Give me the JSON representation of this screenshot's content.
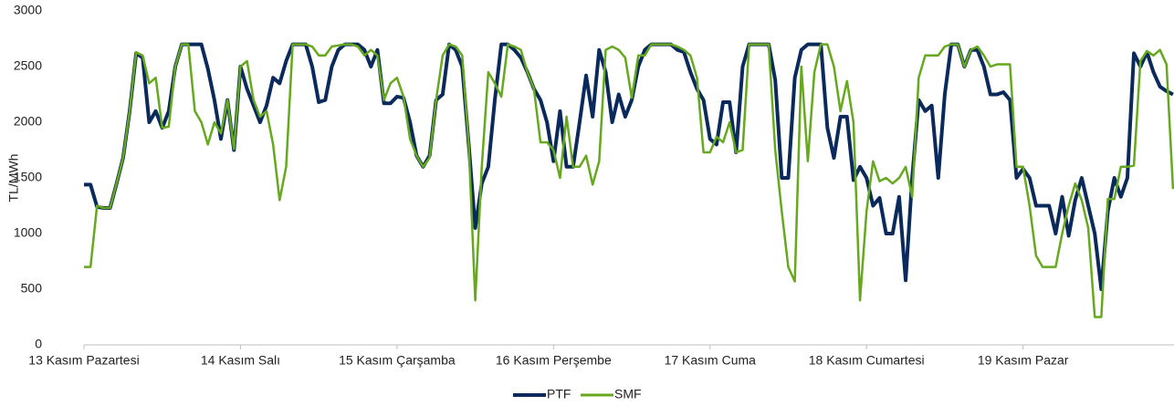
{
  "chart_data": {
    "type": "line",
    "y_label": "TL/MWh",
    "categories": [
      "13 Kasım Pazartesi",
      null,
      null,
      null,
      null,
      null,
      null,
      null,
      null,
      null,
      null,
      null,
      null,
      null,
      null,
      null,
      null,
      null,
      null,
      null,
      null,
      null,
      null,
      null,
      "14 Kasım Salı",
      null,
      null,
      null,
      null,
      null,
      null,
      null,
      null,
      null,
      null,
      null,
      null,
      null,
      null,
      null,
      null,
      null,
      null,
      null,
      null,
      null,
      null,
      null,
      "15 Kasım Çarşamba",
      null,
      null,
      null,
      null,
      null,
      null,
      null,
      null,
      null,
      null,
      null,
      null,
      null,
      null,
      null,
      null,
      null,
      null,
      null,
      null,
      null,
      null,
      null,
      "16 Kasım Perşembe",
      null,
      null,
      null,
      null,
      null,
      null,
      null,
      null,
      null,
      null,
      null,
      null,
      null,
      null,
      null,
      null,
      null,
      null,
      null,
      null,
      null,
      null,
      null,
      "17 Kasım Cuma",
      null,
      null,
      null,
      null,
      null,
      null,
      null,
      null,
      null,
      null,
      null,
      null,
      null,
      null,
      null,
      null,
      null,
      null,
      null,
      null,
      null,
      null,
      null,
      "18 Kasım Cumartesi",
      null,
      null,
      null,
      null,
      null,
      null,
      null,
      null,
      null,
      null,
      null,
      null,
      null,
      null,
      null,
      null,
      null,
      null,
      null,
      null,
      null,
      null,
      null,
      "19 Kasım Pazar",
      null,
      null,
      null,
      null,
      null,
      null,
      null,
      null,
      null,
      null,
      null,
      null,
      null,
      null,
      null,
      null,
      null,
      null,
      null,
      null,
      null,
      null,
      null
    ],
    "series": [
      {
        "name": "PTF",
        "color": "#0b2a5c",
        "values": [
          1440,
          1440,
          1240,
          1230,
          1230,
          1450,
          1680,
          2100,
          2620,
          2580,
          2000,
          2100,
          1950,
          2100,
          2500,
          2700,
          2700,
          2700,
          2700,
          2480,
          2200,
          1850,
          2200,
          1750,
          2500,
          2300,
          2150,
          2000,
          2150,
          2400,
          2350,
          2550,
          2700,
          2700,
          2700,
          2500,
          2180,
          2200,
          2500,
          2650,
          2700,
          2700,
          2700,
          2650,
          2500,
          2650,
          2170,
          2170,
          2230,
          2220,
          2000,
          1700,
          1600,
          1700,
          2200,
          2250,
          2700,
          2650,
          2500,
          1800,
          1050,
          1450,
          1600,
          2200,
          2700,
          2700,
          2650,
          2580,
          2450,
          2300,
          2200,
          2000,
          1650,
          2100,
          1600,
          1600,
          2000,
          2420,
          2050,
          2650,
          2450,
          2000,
          2250,
          2050,
          2200,
          2500,
          2650,
          2700,
          2700,
          2700,
          2700,
          2650,
          2630,
          2450,
          2300,
          2200,
          1850,
          1800,
          2180,
          2180,
          1730,
          2500,
          2700,
          2700,
          2700,
          2700,
          2380,
          1500,
          1500,
          2400,
          2650,
          2700,
          2700,
          2700,
          1950,
          1680,
          2050,
          2050,
          1480,
          1600,
          1500,
          1250,
          1320,
          1000,
          1000,
          1330,
          580,
          1500,
          2200,
          2100,
          2150,
          1500,
          2250,
          2700,
          2700,
          2500,
          2650,
          2650,
          2500,
          2250,
          2250,
          2270,
          2200,
          1500,
          1580,
          1500,
          1250,
          1250,
          1250,
          1000,
          1330,
          980,
          1300,
          1500,
          1250,
          1000,
          500,
          1200,
          1500,
          1330,
          1500,
          2620,
          2500,
          2630,
          2450,
          2320,
          2280,
          2250
        ]
      },
      {
        "name": "SMF",
        "color": "#66a81e",
        "values": [
          700,
          700,
          1250,
          1230,
          1230,
          1450,
          1680,
          2100,
          2630,
          2600,
          2350,
          2400,
          1950,
          1960,
          2500,
          2700,
          2700,
          2100,
          2000,
          1800,
          2000,
          1900,
          2200,
          1760,
          2500,
          2550,
          2200,
          2050,
          2100,
          1800,
          1300,
          1600,
          2700,
          2700,
          2700,
          2680,
          2600,
          2600,
          2680,
          2690,
          2700,
          2700,
          2680,
          2600,
          2650,
          2600,
          2200,
          2350,
          2400,
          2230,
          1850,
          1700,
          1600,
          1680,
          2200,
          2600,
          2700,
          2680,
          2600,
          1800,
          400,
          1600,
          2450,
          2350,
          2230,
          2700,
          2680,
          2650,
          2450,
          2300,
          1820,
          1820,
          1750,
          1500,
          2050,
          1600,
          1600,
          1700,
          1440,
          1650,
          2650,
          2680,
          2650,
          2580,
          2220,
          2600,
          2600,
          2700,
          2700,
          2700,
          2700,
          2680,
          2650,
          2600,
          2400,
          1730,
          1730,
          1870,
          1820,
          2000,
          1730,
          1750,
          2700,
          2700,
          2700,
          2700,
          1750,
          1200,
          700,
          570,
          2500,
          1650,
          2450,
          2700,
          2700,
          2500,
          2100,
          2370,
          2000,
          400,
          1200,
          1650,
          1470,
          1500,
          1450,
          1500,
          1600,
          1330,
          2400,
          2600,
          2600,
          2600,
          2680,
          2700,
          2700,
          2500,
          2650,
          2680,
          2600,
          2500,
          2520,
          2520,
          2520,
          1600,
          1600,
          1250,
          800,
          700,
          700,
          700,
          1000,
          1250,
          1450,
          1300,
          1050,
          250,
          250,
          1310,
          1310,
          1600,
          1600,
          1610,
          2550,
          2640,
          2600,
          2650,
          2520,
          1400
        ]
      }
    ],
    "ylim": [
      0,
      3000
    ],
    "yticks": [
      0,
      500,
      1000,
      1500,
      2000,
      2500,
      3000
    ],
    "grid": false,
    "legend": "bottom"
  }
}
